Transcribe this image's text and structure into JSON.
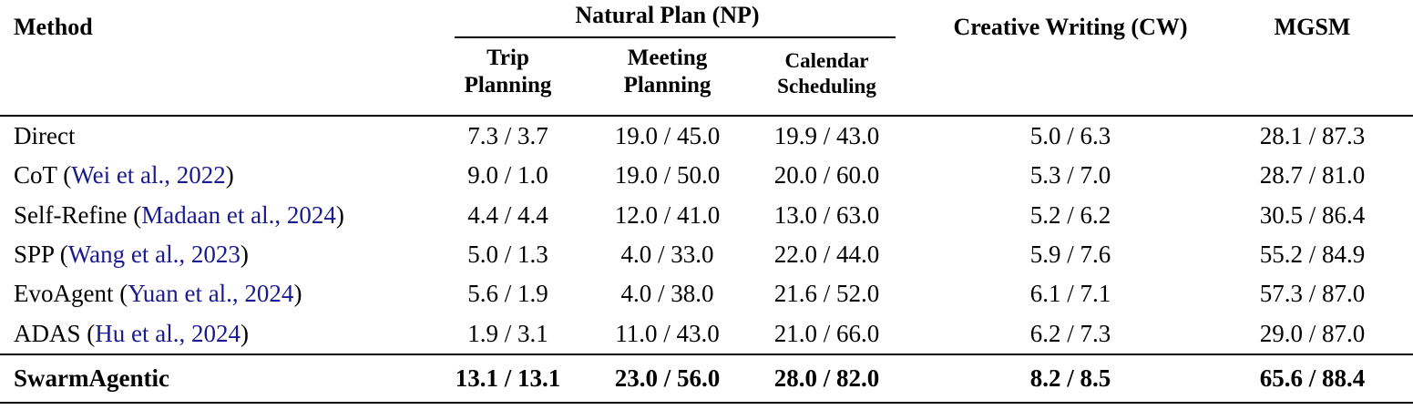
{
  "colors": {
    "citation_link": "#1a1a8f",
    "text": "#000000",
    "rule": "#000000",
    "background": "#ffffff"
  },
  "header": {
    "method": "Method",
    "np_group": "Natural Plan (NP)",
    "np_subcolumns": [
      {
        "line1": "Trip",
        "line2": "Planning"
      },
      {
        "line1": "Meeting",
        "line2": "Planning"
      },
      {
        "line1": "Calendar",
        "line2": "Scheduling"
      }
    ],
    "creative_writing": "Creative Writing (CW)",
    "mgsm": "MGSM"
  },
  "rows": [
    {
      "method_prefix": "Direct",
      "citation": "",
      "method_suffix": "",
      "trip": "7.3 / 3.7",
      "meeting": "19.0 / 45.0",
      "calendar": "19.9 / 43.0",
      "cw": "5.0 / 6.3",
      "mgsm": "28.1 / 87.3"
    },
    {
      "method_prefix": "CoT (",
      "citation": "Wei et al., 2022",
      "method_suffix": ")",
      "trip": "9.0 / 1.0",
      "meeting": "19.0 / 50.0",
      "calendar": "20.0 / 60.0",
      "cw": "5.3 / 7.0",
      "mgsm": "28.7 / 81.0"
    },
    {
      "method_prefix": "Self-Refine (",
      "citation": "Madaan et al., 2024",
      "method_suffix": ")",
      "trip": "4.4 / 4.4",
      "meeting": "12.0 / 41.0",
      "calendar": "13.0 / 63.0",
      "cw": "5.2 / 6.2",
      "mgsm": "30.5 / 86.4"
    },
    {
      "method_prefix": "SPP (",
      "citation": "Wang et al., 2023",
      "method_suffix": ")",
      "trip": "5.0 / 1.3",
      "meeting": "4.0 / 33.0",
      "calendar": "22.0 / 44.0",
      "cw": "5.9 / 7.6",
      "mgsm": "55.2 / 84.9"
    },
    {
      "method_prefix": "EvoAgent (",
      "citation": "Yuan et al., 2024",
      "method_suffix": ")",
      "trip": "5.6 / 1.9",
      "meeting": "4.0 / 38.0",
      "calendar": "21.6 / 52.0",
      "cw": "6.1 / 7.1",
      "mgsm": "57.3 / 87.0"
    },
    {
      "method_prefix": "ADAS (",
      "citation": "Hu et al., 2024",
      "method_suffix": ")",
      "trip": "1.9 / 3.1",
      "meeting": "11.0 / 43.0",
      "calendar": "21.0 / 66.0",
      "cw": "6.2 / 7.3",
      "mgsm": "29.0 / 87.0"
    }
  ],
  "highlight_row": {
    "method": "SwarmAgentic",
    "trip": "13.1 / 13.1",
    "meeting": "23.0 / 56.0",
    "calendar": "28.0 / 82.0",
    "cw": "8.2 / 8.5",
    "mgsm": "65.6 / 88.4"
  }
}
